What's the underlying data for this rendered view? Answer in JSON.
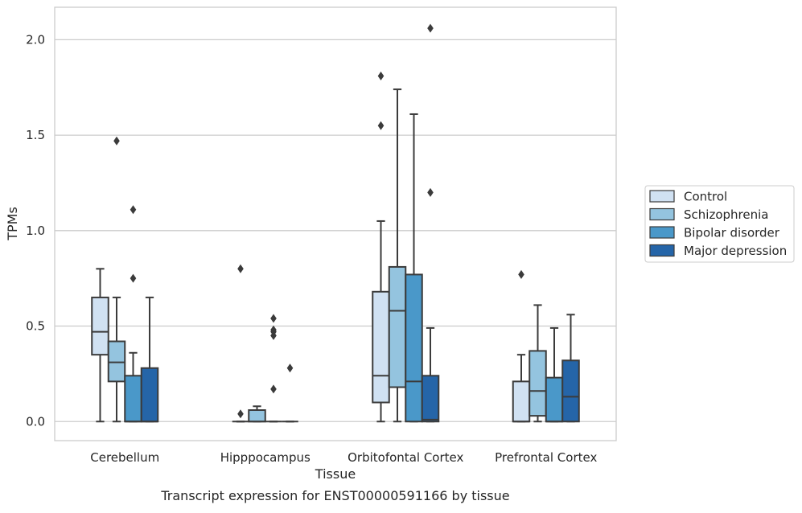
{
  "caption": "Transcript expression for ENST00000591166 by tissue",
  "chart_data": {
    "type": "box",
    "title": "",
    "xlabel": "Tissue",
    "ylabel": "TPMs",
    "ylim": [
      -0.1,
      2.17
    ],
    "yticks": [
      0.0,
      0.5,
      1.0,
      1.5,
      2.0
    ],
    "ytick_labels": [
      "0.0",
      "0.5",
      "1.0",
      "1.5",
      "2.0"
    ],
    "grid": "horizontal",
    "legend_position": "right",
    "categories": [
      "Cerebellum",
      "Hipppocampus",
      "Orbitofontal Cortex",
      "Prefrontal Cortex"
    ],
    "series": [
      {
        "name": "Control",
        "color": "#d0e1f2",
        "boxes": [
          {
            "whislo": 0.0,
            "q1": 0.35,
            "med": 0.47,
            "q3": 0.65,
            "whishi": 0.8,
            "fliers": []
          },
          {
            "whislo": 0.0,
            "q1": 0.0,
            "med": 0.0,
            "q3": 0.0,
            "whishi": 0.0,
            "fliers": [
              0.04,
              0.8
            ]
          },
          {
            "whislo": 0.0,
            "q1": 0.1,
            "med": 0.24,
            "q3": 0.68,
            "whishi": 1.05,
            "fliers": [
              1.55,
              1.81
            ]
          },
          {
            "whislo": 0.0,
            "q1": 0.0,
            "med": 0.0,
            "q3": 0.21,
            "whishi": 0.35,
            "fliers": [
              0.77
            ]
          }
        ]
      },
      {
        "name": "Schizophrenia",
        "color": "#94c4df",
        "boxes": [
          {
            "whislo": 0.0,
            "q1": 0.21,
            "med": 0.31,
            "q3": 0.42,
            "whishi": 0.65,
            "fliers": [
              1.47
            ]
          },
          {
            "whislo": 0.0,
            "q1": 0.0,
            "med": 0.0,
            "q3": 0.06,
            "whishi": 0.08,
            "fliers": []
          },
          {
            "whislo": 0.0,
            "q1": 0.18,
            "med": 0.58,
            "q3": 0.81,
            "whishi": 1.74,
            "fliers": []
          },
          {
            "whislo": 0.0,
            "q1": 0.03,
            "med": 0.16,
            "q3": 0.37,
            "whishi": 0.61,
            "fliers": []
          }
        ]
      },
      {
        "name": "Bipolar disorder",
        "color": "#4a98c9",
        "boxes": [
          {
            "whislo": 0.0,
            "q1": 0.0,
            "med": 0.0,
            "q3": 0.24,
            "whishi": 0.36,
            "fliers": [
              0.75,
              1.11
            ]
          },
          {
            "whislo": 0.0,
            "q1": 0.0,
            "med": 0.0,
            "q3": 0.0,
            "whishi": 0.0,
            "fliers": [
              0.17,
              0.45,
              0.47,
              0.48,
              0.54
            ]
          },
          {
            "whislo": 0.0,
            "q1": 0.0,
            "med": 0.21,
            "q3": 0.77,
            "whishi": 1.61,
            "fliers": []
          },
          {
            "whislo": 0.0,
            "q1": 0.0,
            "med": 0.0,
            "q3": 0.23,
            "whishi": 0.49,
            "fliers": []
          }
        ]
      },
      {
        "name": "Major depression",
        "color": "#2565a8",
        "boxes": [
          {
            "whislo": 0.0,
            "q1": 0.0,
            "med": 0.0,
            "q3": 0.28,
            "whishi": 0.65,
            "fliers": []
          },
          {
            "whislo": 0.0,
            "q1": 0.0,
            "med": 0.0,
            "q3": 0.0,
            "whishi": 0.0,
            "fliers": [
              0.28
            ]
          },
          {
            "whislo": 0.0,
            "q1": 0.0,
            "med": 0.01,
            "q3": 0.24,
            "whishi": 0.49,
            "fliers": [
              1.2,
              2.06
            ]
          },
          {
            "whislo": 0.0,
            "q1": 0.0,
            "med": 0.13,
            "q3": 0.32,
            "whishi": 0.56,
            "fliers": []
          }
        ]
      }
    ]
  }
}
